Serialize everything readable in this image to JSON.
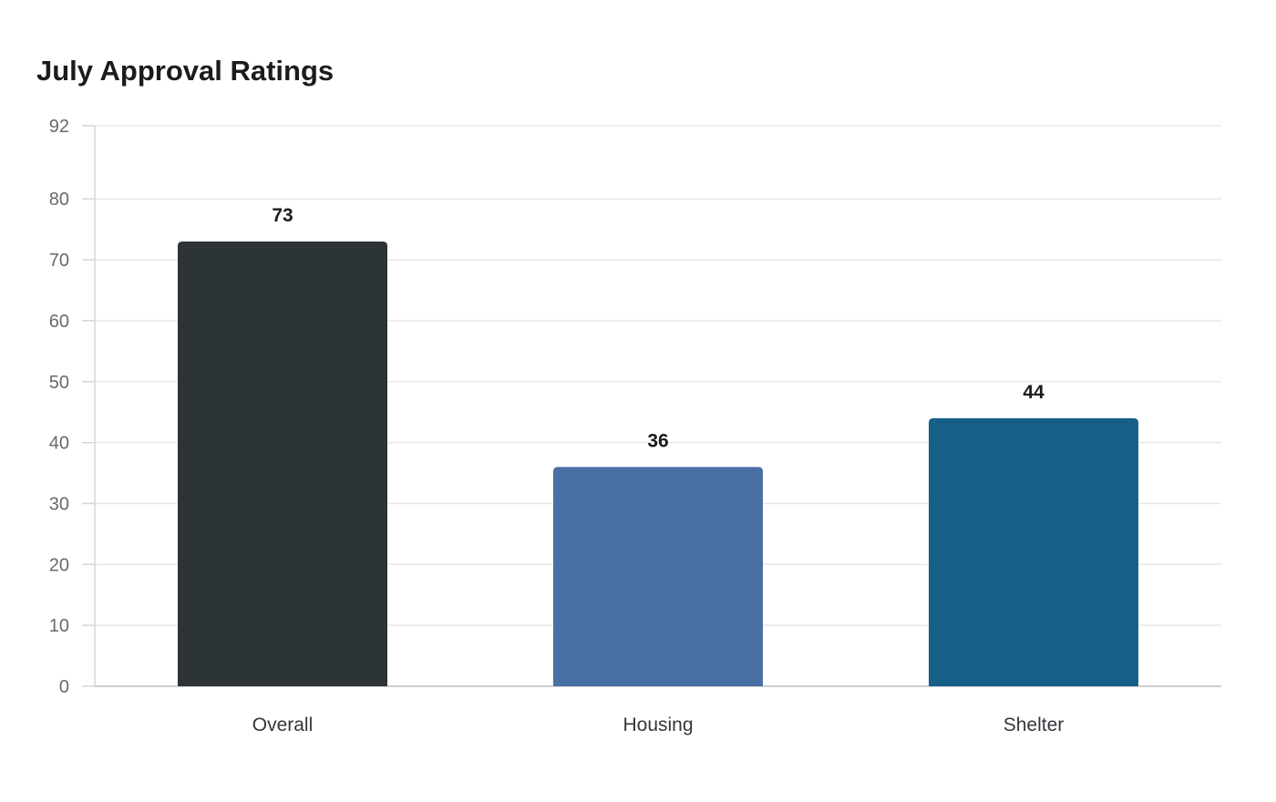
{
  "chart_data": {
    "type": "bar",
    "title": "July Approval Ratings",
    "xlabel": "",
    "ylabel": "",
    "categories": [
      "Overall",
      "Housing",
      "Shelter"
    ],
    "values": [
      73,
      36,
      44
    ],
    "bar_colors": [
      "#2d3436",
      "#4a6fa5",
      "#166088"
    ],
    "ylim": [
      0,
      92
    ],
    "yticks": [
      0,
      10,
      20,
      30,
      40,
      50,
      60,
      70,
      80,
      92
    ],
    "grid": true,
    "legend": "none",
    "data_labels": true
  }
}
